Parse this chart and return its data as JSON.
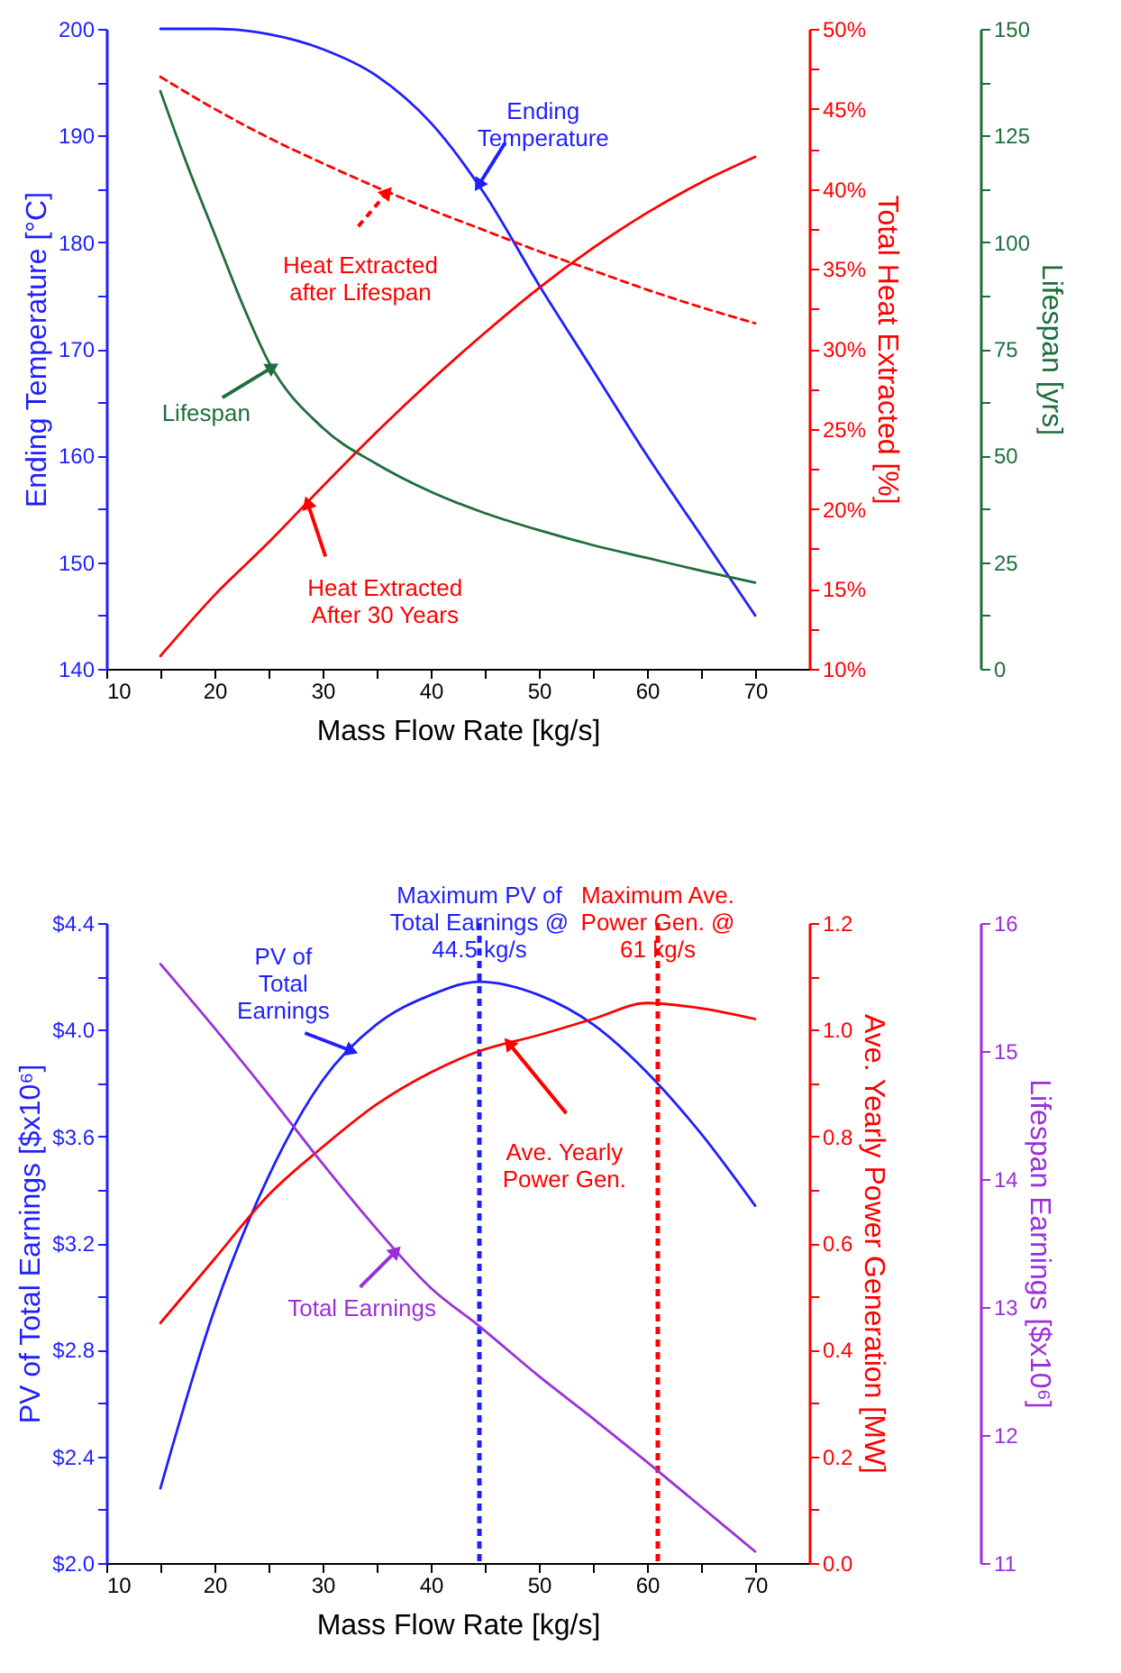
{
  "chart_data": [
    {
      "type": "line",
      "xlabel": "Mass Flow Rate [kg/s]",
      "ylabel": "Ending Temperature [°C]",
      "y2label": "Total Heat Extracted [%]",
      "y3label": "Lifespan [yrs]",
      "x": [
        15,
        20,
        25,
        30,
        35,
        40,
        45,
        50,
        55,
        60,
        65,
        70
      ],
      "xlim": [
        10,
        75
      ],
      "xticks": [
        10,
        {
          "value": 15,
          "label": null
        },
        20,
        {
          "value": 25,
          "label": null
        },
        30,
        {
          "value": 35,
          "label": null
        },
        40,
        {
          "value": 45,
          "label": null
        },
        50,
        {
          "value": 55,
          "label": null
        },
        60,
        {
          "value": 65,
          "label": null
        },
        70
      ],
      "ylim": [
        140,
        200
      ],
      "yticks": [
        140,
        {
          "value": 145,
          "label": null
        },
        150,
        {
          "value": 155,
          "label": null
        },
        160,
        {
          "value": 165,
          "label": null
        },
        170,
        {
          "value": 175,
          "label": null
        },
        180,
        {
          "value": 185,
          "label": null
        },
        190,
        {
          "value": 195,
          "label": null
        },
        200
      ],
      "y2lim": [
        10,
        50
      ],
      "y2ticks": [
        {
          "value": 10,
          "label": "10%"
        },
        {
          "value": 12.5,
          "label": null
        },
        {
          "value": 15,
          "label": "15%"
        },
        {
          "value": 17.5,
          "label": null
        },
        {
          "value": 20,
          "label": "20%"
        },
        {
          "value": 22.5,
          "label": null
        },
        {
          "value": 25,
          "label": "25%"
        },
        {
          "value": 27.5,
          "label": null
        },
        {
          "value": 30,
          "label": "30%"
        },
        {
          "value": 32.5,
          "label": null
        },
        {
          "value": 35,
          "label": "35%"
        },
        {
          "value": 37.5,
          "label": null
        },
        {
          "value": 40,
          "label": "40%"
        },
        {
          "value": 42.5,
          "label": null
        },
        {
          "value": 45,
          "label": "45%"
        },
        {
          "value": 47.5,
          "label": null
        },
        {
          "value": 50,
          "label": "50%"
        }
      ],
      "y3lim": [
        0,
        150
      ],
      "y3ticks": [
        0,
        {
          "value": 12.5,
          "label": null
        },
        25,
        {
          "value": 37.5,
          "label": null
        },
        50,
        {
          "value": 62.5,
          "label": null
        },
        75,
        {
          "value": 87.5,
          "label": null
        },
        100,
        {
          "value": 112.5,
          "label": null
        },
        125,
        {
          "value": 137.5,
          "label": null
        },
        150
      ],
      "series": [
        {
          "color": "#1f1fff",
          "values": [
            200,
            200,
            199.5,
            198.1,
            195.6,
            191.2,
            184.5,
            176,
            168,
            160,
            152.5,
            145
          ]
        },
        {
          "color": "#ff0000",
          "axis": "y2",
          "values": [
            10.8,
            14.6,
            17.9,
            21.4,
            24.8,
            28.0,
            31.0,
            33.8,
            36.3,
            38.5,
            40.4,
            42.0
          ]
        },
        {
          "color": "#ff0000",
          "axis": "y2",
          "line_style": "dashed",
          "values": [
            47.0,
            45.0,
            43.2,
            41.6,
            40.1,
            38.7,
            37.4,
            36.1,
            34.9,
            33.7,
            32.6,
            31.6
          ]
        },
        {
          "color": "#1e6e3c",
          "axis": "y3",
          "x": [
            15,
            17.5,
            20,
            22.5,
            25,
            30,
            35,
            40,
            45,
            50,
            55,
            60,
            65,
            70
          ],
          "values": [
            135.4,
            118,
            102,
            86,
            72,
            56.5,
            48,
            41.5,
            36.5,
            32.5,
            29,
            26,
            23,
            20.2
          ]
        }
      ],
      "annotations": [
        {
          "text": "Ending\nTemperature",
          "x": 44.4,
          "y": 185.3
        },
        {
          "text": "Heat Extracted\nafter Lifespan",
          "x": 36,
          "y": 184.7
        },
        {
          "text": "Lifespan",
          "x": 25.4,
          "y": 168.3
        },
        {
          "text": "Heat Extracted\nAfter 30 Years",
          "x": 28.6,
          "y": 155.6
        }
      ]
    },
    {
      "type": "line",
      "xlabel": "Mass Flow Rate [kg/s]",
      "ylabel": "PV of Total Earnings [$x10⁶]",
      "y2label": "Ave. Yearly Power Generation [MW]",
      "y3label": "Lifespan Earnings [$x10⁶]",
      "x": [
        15,
        20,
        25,
        30,
        35,
        40,
        44.5,
        50,
        55,
        60,
        65,
        70
      ],
      "xlim": [
        10,
        75
      ],
      "xticks": [
        10,
        {
          "value": 15,
          "label": null
        },
        20,
        {
          "value": 25,
          "label": null
        },
        30,
        {
          "value": 35,
          "label": null
        },
        40,
        {
          "value": 45,
          "label": null
        },
        50,
        {
          "value": 55,
          "label": null
        },
        60,
        {
          "value": 65,
          "label": null
        },
        70
      ],
      "ylim": [
        2.0,
        4.4
      ],
      "yticks": [
        {
          "value": 2.0,
          "label": "$2.0"
        },
        {
          "value": 2.2,
          "label": null
        },
        {
          "value": 2.4,
          "label": "$2.4"
        },
        {
          "value": 2.6,
          "label": null
        },
        {
          "value": 2.8,
          "label": "$2.8"
        },
        {
          "value": 3.0,
          "label": null
        },
        {
          "value": 3.2,
          "label": "$3.2"
        },
        {
          "value": 3.4,
          "label": null
        },
        {
          "value": 3.6,
          "label": "$3.6"
        },
        {
          "value": 3.8,
          "label": null
        },
        {
          "value": 4.0,
          "label": "$4.0"
        },
        {
          "value": 4.2,
          "label": null
        },
        {
          "value": 4.4,
          "label": "$4.4"
        }
      ],
      "y2lim": [
        0,
        1.2
      ],
      "y2ticks": [
        {
          "value": 0,
          "label": "0.0"
        },
        {
          "value": 0.1,
          "label": null
        },
        0.2,
        {
          "value": 0.3,
          "label": null
        },
        0.4,
        {
          "value": 0.5,
          "label": null
        },
        0.6,
        {
          "value": 0.7,
          "label": null
        },
        0.8,
        {
          "value": 0.9,
          "label": null
        },
        {
          "value": 1.0,
          "label": "1.0"
        },
        {
          "value": 1.1,
          "label": null
        },
        1.2
      ],
      "y3lim": [
        11,
        16
      ],
      "y3ticks": [
        11,
        12,
        13,
        14,
        15,
        16
      ],
      "series": [
        {
          "color": "#1f1fff",
          "values": [
            2.28,
            2.95,
            3.45,
            3.81,
            4.02,
            4.13,
            4.18,
            4.13,
            4.02,
            3.84,
            3.61,
            3.34
          ]
        },
        {
          "color": "#ff0000",
          "axis": "y2",
          "values": [
            0.45,
            0.57,
            0.69,
            0.78,
            0.86,
            0.92,
            0.96,
            0.99,
            1.02,
            1.05,
            1.04,
            1.02
          ]
        },
        {
          "color": "#9b30d9",
          "axis": "y3",
          "values": [
            15.68,
            15.18,
            14.66,
            14.12,
            13.61,
            13.15,
            12.85,
            12.46,
            12.13,
            11.79,
            11.44,
            11.09
          ]
        }
      ],
      "ref_lines": [
        {
          "axis": "x",
          "value": 44.5,
          "label": "Maximum PV of\nTotal Earnings @\n44.5 kg/s",
          "color": "#1f1fff",
          "line_style": "dashed"
        },
        {
          "axis": "x",
          "value": 61,
          "label": "Maximum Ave.\nPower Gen. @\n61 kg/s",
          "color": "#ff0000",
          "line_style": "dashed"
        }
      ],
      "annotations": [
        {
          "text": "PV of\nTotal\nEarnings",
          "x": 32.7,
          "y": 3.92
        },
        {
          "text": "Ave. Yearly\nPower Gen.",
          "x": 47.2,
          "y": 3.95
        },
        {
          "text": "Total Earnings",
          "x": 36.8,
          "y": 3.17
        }
      ]
    }
  ]
}
